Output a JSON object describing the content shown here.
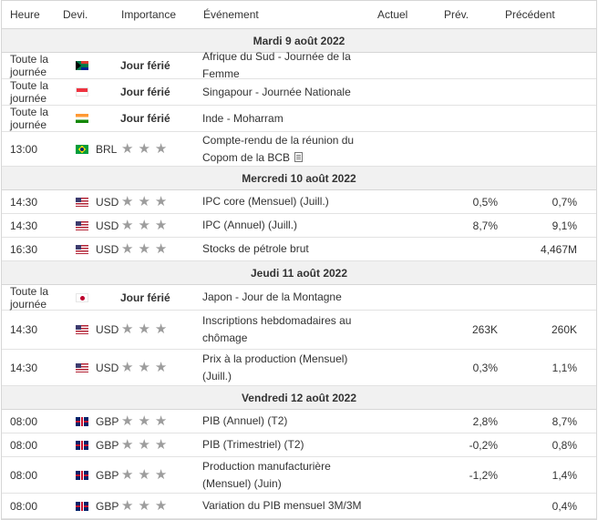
{
  "headers": {
    "time": "Heure",
    "currency": "Devi.",
    "importance": "Importance",
    "event": "Événement",
    "actual": "Actuel",
    "forecast": "Prév.",
    "previous": "Précédent"
  },
  "colors": {
    "header_border": "#d6d6d6",
    "day_bg": "#f1f1f1",
    "star": "#9d9d9d",
    "text": "#333333"
  },
  "days": [
    {
      "label": "Mardi 9 août 2022",
      "events": [
        {
          "time": "Toute la journée",
          "flag": "south-africa-flag-icon",
          "currency": "",
          "importance": "Jour férié",
          "event": "Afrique du Sud - Journée de la Femme",
          "actual": "",
          "forecast": "",
          "previous": ""
        },
        {
          "time": "Toute la journée",
          "flag": "singapore-flag-icon",
          "currency": "",
          "importance": "Jour férié",
          "event": "Singapour - Journée Nationale",
          "actual": "",
          "forecast": "",
          "previous": ""
        },
        {
          "time": "Toute la journée",
          "flag": "india-flag-icon",
          "currency": "",
          "importance": "Jour férié",
          "event": "Inde - Moharram",
          "actual": "",
          "forecast": "",
          "previous": ""
        },
        {
          "time": "13:00",
          "flag": "brazil-flag-icon",
          "currency": "BRL",
          "importance": 3,
          "event": "Compte-rendu de la réunion du Copom de la BCB",
          "actual": "",
          "forecast": "",
          "previous": ""
        }
      ]
    },
    {
      "label": "Mercredi 10 août 2022",
      "events": [
        {
          "time": "14:30",
          "flag": "usa-flag-icon",
          "currency": "USD",
          "importance": 3,
          "event": "IPC core (Mensuel) (Juill.)",
          "actual": "",
          "forecast": "0,5%",
          "previous": "0,7%"
        },
        {
          "time": "14:30",
          "flag": "usa-flag-icon",
          "currency": "USD",
          "importance": 3,
          "event": "IPC (Annuel) (Juill.)",
          "actual": "",
          "forecast": "8,7%",
          "previous": "9,1%"
        },
        {
          "time": "16:30",
          "flag": "usa-flag-icon",
          "currency": "USD",
          "importance": 3,
          "event": "Stocks de pétrole brut",
          "actual": "",
          "forecast": "",
          "previous": "4,467M"
        }
      ]
    },
    {
      "label": "Jeudi 11 août 2022",
      "events": [
        {
          "time": "Toute la journée",
          "flag": "japan-flag-icon",
          "currency": "",
          "importance": "Jour férié",
          "event": "Japon - Jour de la Montagne",
          "actual": "",
          "forecast": "",
          "previous": ""
        },
        {
          "time": "14:30",
          "flag": "usa-flag-icon",
          "currency": "USD",
          "importance": 3,
          "event": "Inscriptions hebdomadaires au chômage",
          "actual": "",
          "forecast": "263K",
          "previous": "260K"
        },
        {
          "time": "14:30",
          "flag": "usa-flag-icon",
          "currency": "USD",
          "importance": 3,
          "event": "Prix à la production (Mensuel) (Juill.)",
          "actual": "",
          "forecast": "0,3%",
          "previous": "1,1%"
        }
      ]
    },
    {
      "label": "Vendredi 12 août 2022",
      "events": [
        {
          "time": "08:00",
          "flag": "uk-flag-icon",
          "currency": "GBP",
          "importance": 3,
          "event": "PIB (Annuel) (T2)",
          "actual": "",
          "forecast": "2,8%",
          "previous": "8,7%"
        },
        {
          "time": "08:00",
          "flag": "uk-flag-icon",
          "currency": "GBP",
          "importance": 3,
          "event": "PIB (Trimestriel) (T2)",
          "actual": "",
          "forecast": "-0,2%",
          "previous": "0,8%"
        },
        {
          "time": "08:00",
          "flag": "uk-flag-icon",
          "currency": "GBP",
          "importance": 3,
          "event": "Production manufacturière (Mensuel) (Juin)",
          "actual": "",
          "forecast": "-1,2%",
          "previous": "1,4%"
        },
        {
          "time": "08:00",
          "flag": "uk-flag-icon",
          "currency": "GBP",
          "importance": 3,
          "event": "Variation du PIB mensuel 3M/3M",
          "actual": "",
          "forecast": "",
          "previous": "0,4%"
        }
      ]
    }
  ]
}
